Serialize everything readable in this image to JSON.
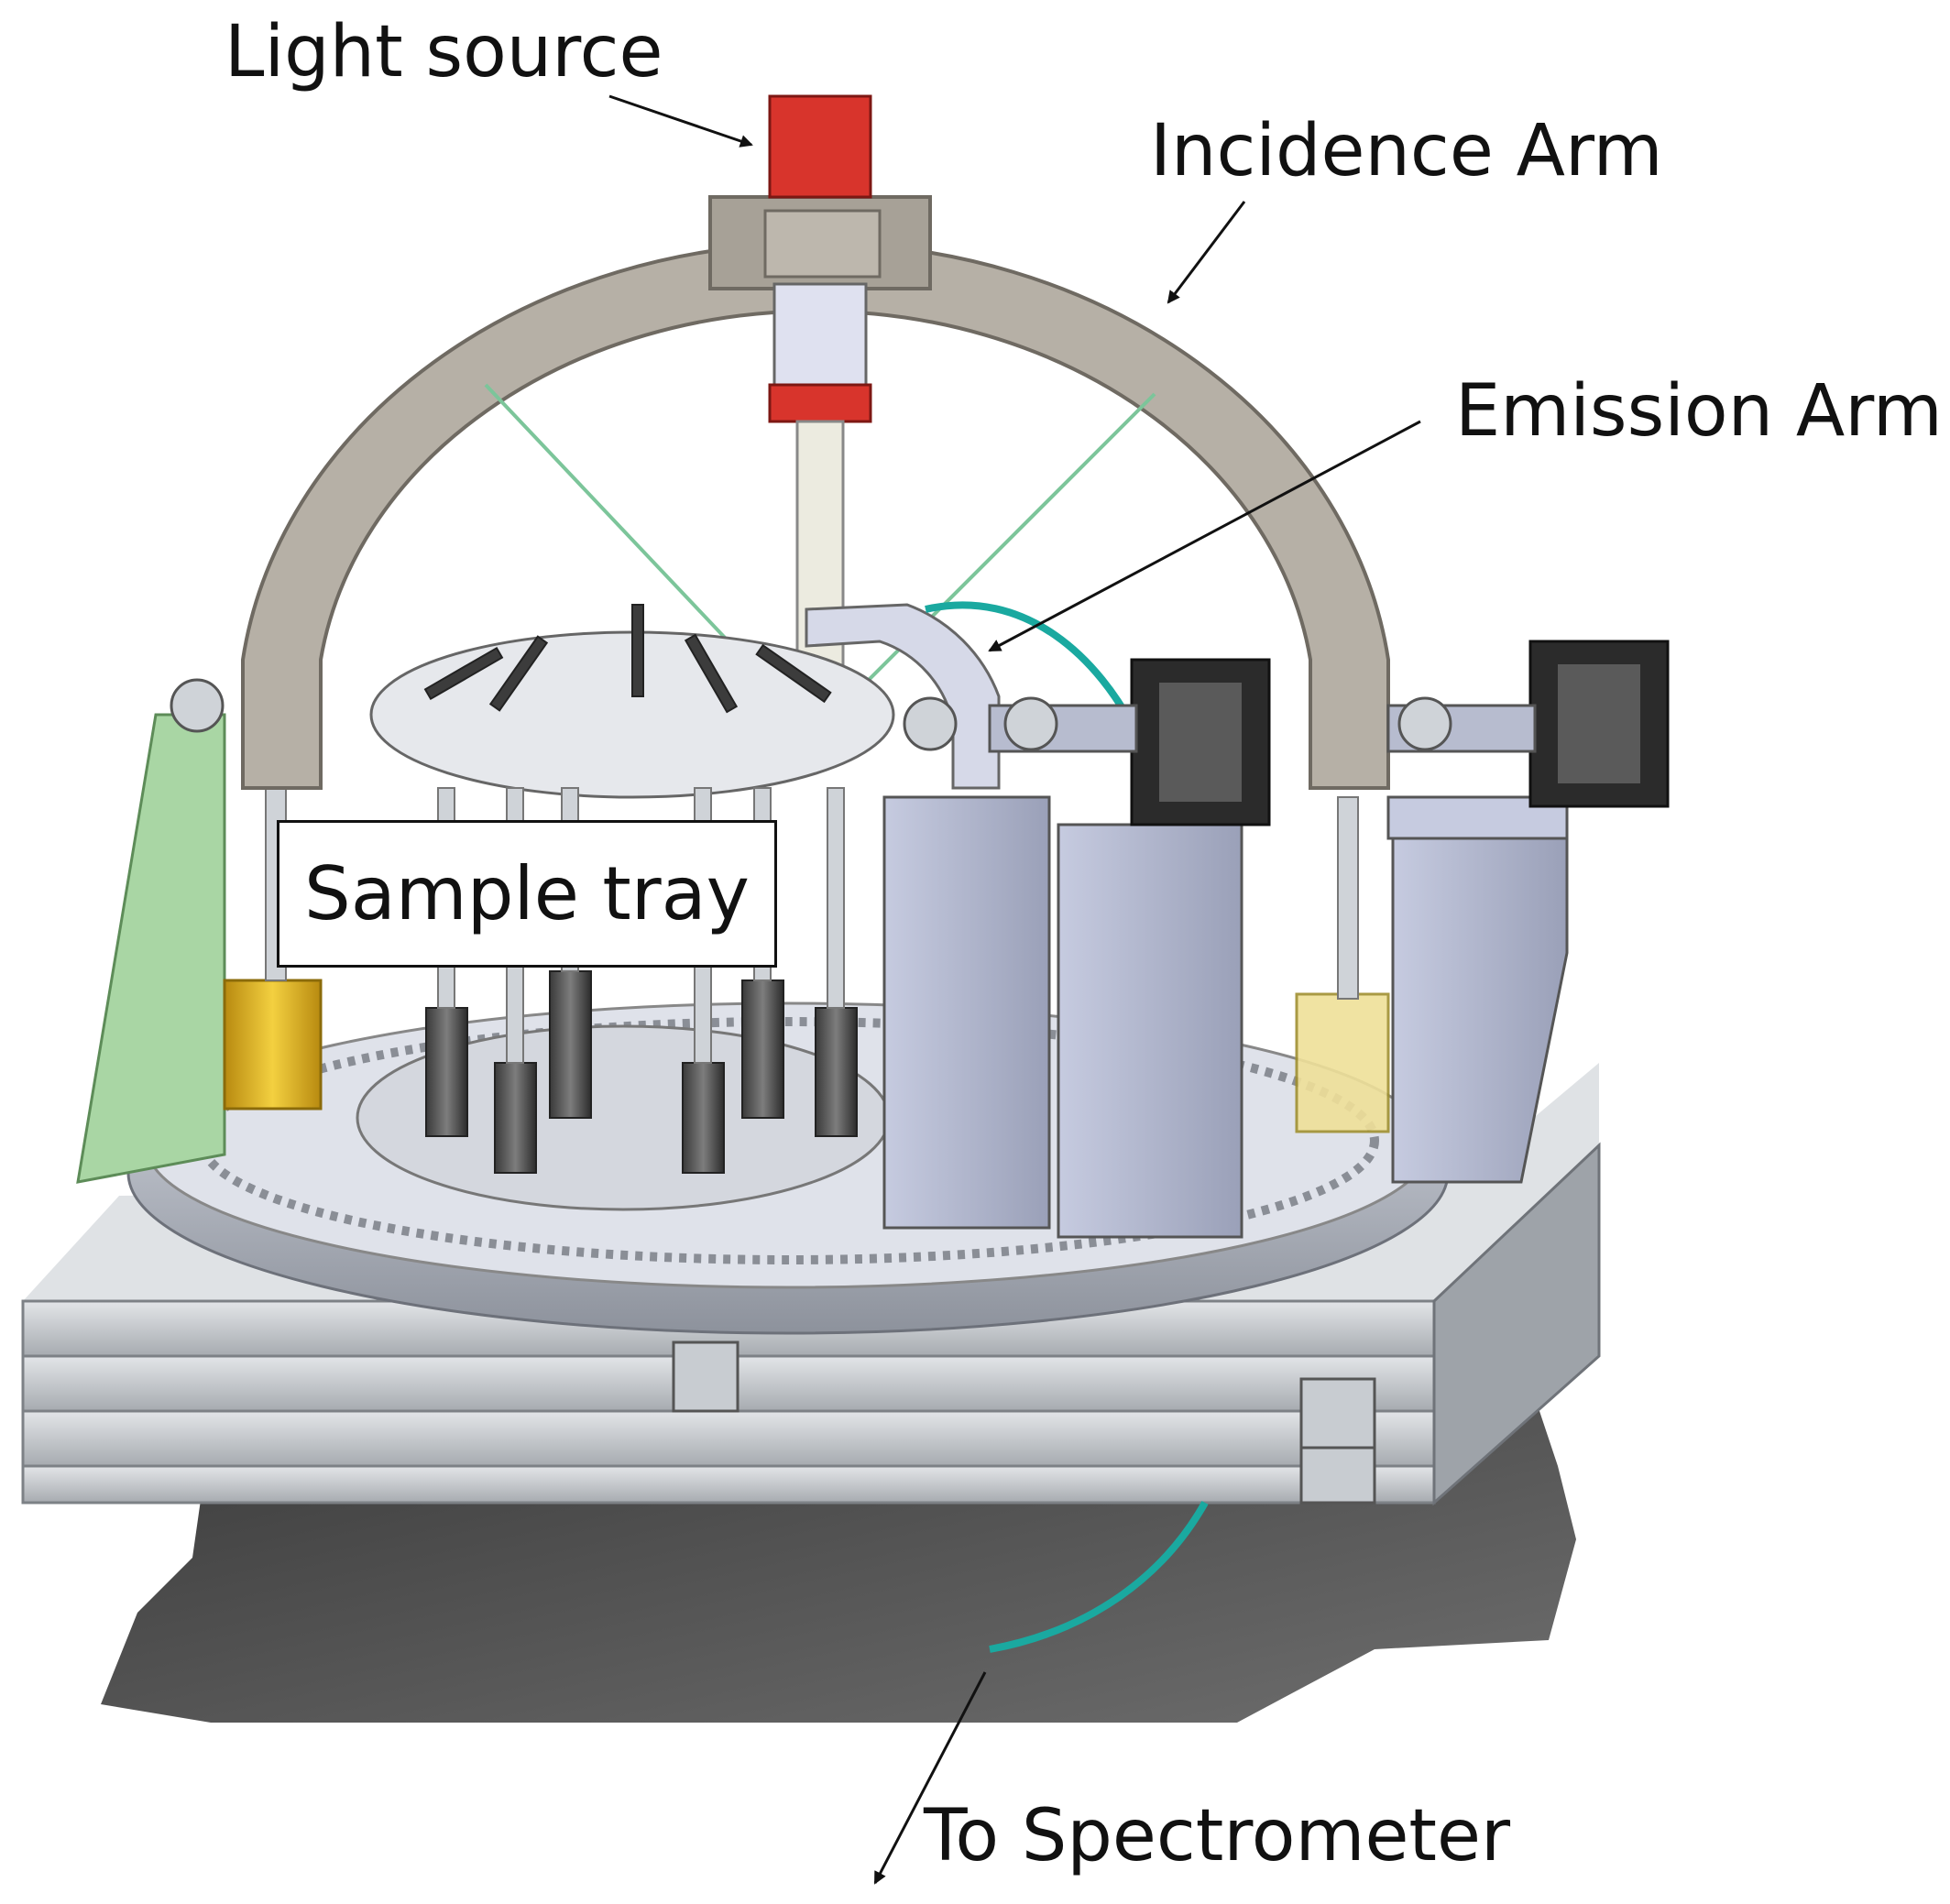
{
  "labels": {
    "light_source": "Light source",
    "incidence_arm": "Incidence Arm",
    "emission_arm": "Emission Arm",
    "sample_tray": "Sample tray",
    "to_spectrometer": "To Spectrometer"
  },
  "colors": {
    "shadow": "#4a4a4a",
    "arm": "#b6b0a6",
    "light_source": "#d8342c",
    "platform": "#c9ccd0",
    "housing": "#b9bfd6",
    "motor": "#2b2b2b",
    "fiber": "#1aa9a0",
    "green_block": "#a9d6a4",
    "gold": "#e0b21c"
  }
}
